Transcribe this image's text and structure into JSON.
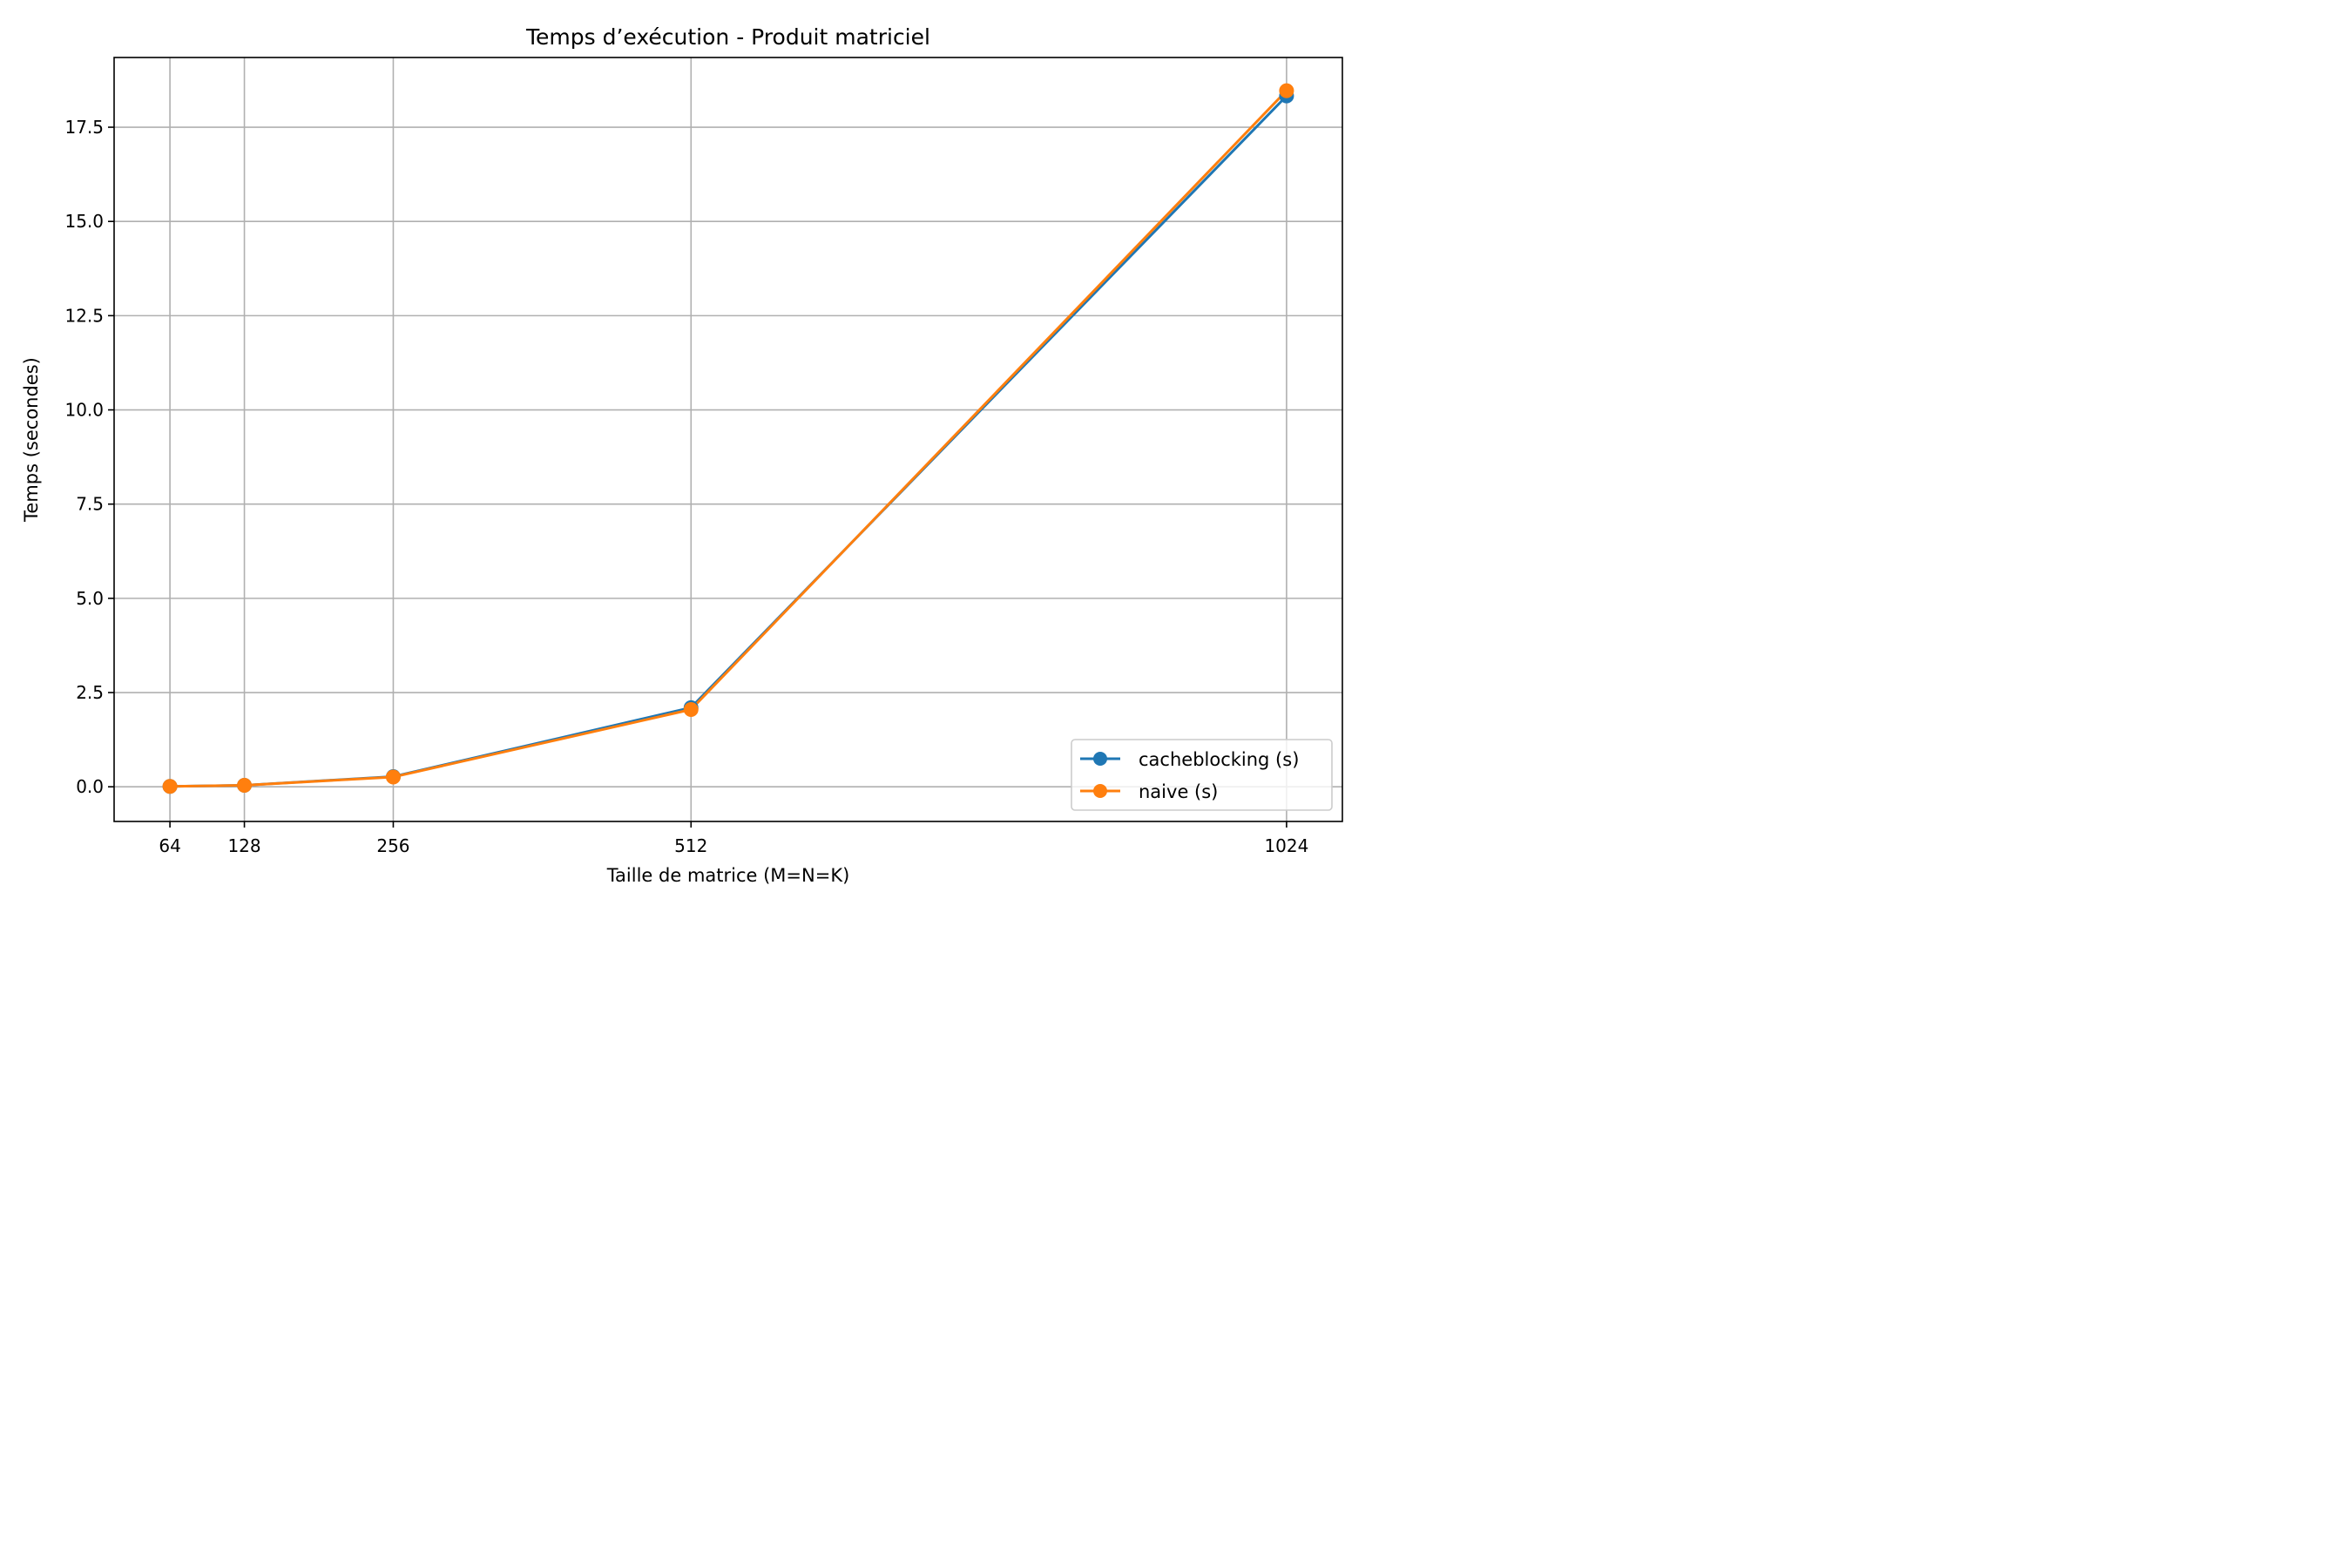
{
  "chart_data": {
    "type": "line",
    "title": "Temps d’exécution - Produit matriciel",
    "xlabel": "Taille de matrice (M=N=K)",
    "ylabel": "Temps (secondes)",
    "x": [
      64,
      128,
      256,
      512,
      1024
    ],
    "x_tick_labels": [
      "64",
      "128",
      "256",
      "512",
      "1024"
    ],
    "xlim": [
      16,
      1072
    ],
    "ylim": [
      -0.92,
      19.35
    ],
    "y_ticks": [
      0.0,
      2.5,
      5.0,
      7.5,
      10.0,
      12.5,
      15.0,
      17.5
    ],
    "y_tick_labels": [
      "0.0",
      "2.5",
      "5.0",
      "7.5",
      "10.0",
      "12.5",
      "15.0",
      "17.5"
    ],
    "grid": true,
    "legend_position": "lower right",
    "series": [
      {
        "name": "cacheblocking (s)",
        "color": "#1f77b4",
        "marker": "circle",
        "values": [
          0.01,
          0.04,
          0.27,
          2.1,
          18.33
        ]
      },
      {
        "name": "naive (s)",
        "color": "#ff7f0e",
        "marker": "circle",
        "values": [
          0.01,
          0.04,
          0.26,
          2.05,
          18.47
        ]
      }
    ]
  }
}
